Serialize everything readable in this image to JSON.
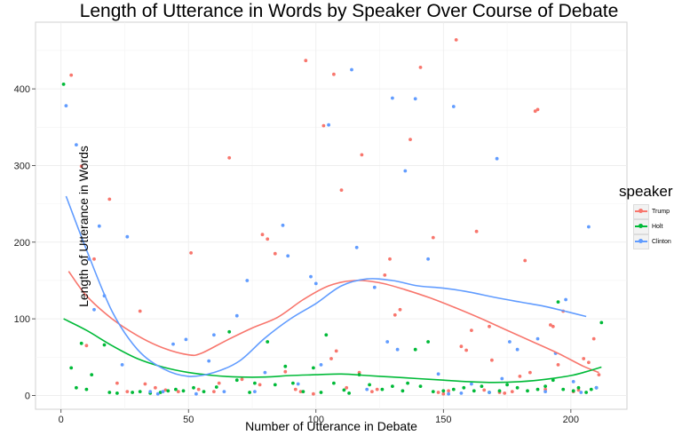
{
  "chart_data": {
    "type": "scatter",
    "title": "Length of Utterance in Words by Speaker Over Course of Debate",
    "xlabel": "Number of Utterance in Debate",
    "ylabel": "Length of Utterance in Words",
    "xlim": [
      -10,
      222
    ],
    "ylim": [
      -18,
      487
    ],
    "x_ticks": [
      0,
      50,
      100,
      150,
      200
    ],
    "y_ticks": [
      0,
      100,
      200,
      300,
      400
    ],
    "grid": true,
    "legend_title": "speaker",
    "legend_position": "right",
    "series": [
      {
        "name": "Trump",
        "color": "#F8766D",
        "points": [
          [
            4,
            418
          ],
          [
            8,
            299
          ],
          [
            10,
            65
          ],
          [
            13,
            178
          ],
          [
            19,
            256
          ],
          [
            22,
            16
          ],
          [
            26,
            5
          ],
          [
            31,
            110
          ],
          [
            33,
            15
          ],
          [
            37,
            10
          ],
          [
            41,
            7
          ],
          [
            46,
            5
          ],
          [
            51,
            186
          ],
          [
            54,
            8
          ],
          [
            60,
            5
          ],
          [
            62,
            16
          ],
          [
            66,
            310
          ],
          [
            71,
            21
          ],
          [
            78,
            14
          ],
          [
            79,
            210
          ],
          [
            81,
            204
          ],
          [
            84,
            185
          ],
          [
            88,
            31
          ],
          [
            92,
            8
          ],
          [
            94,
            5
          ],
          [
            96,
            437
          ],
          [
            99,
            2
          ],
          [
            103,
            352
          ],
          [
            106,
            48
          ],
          [
            107,
            419
          ],
          [
            108,
            58
          ],
          [
            110,
            268
          ],
          [
            112,
            10
          ],
          [
            117,
            30
          ],
          [
            118,
            314
          ],
          [
            122,
            5
          ],
          [
            124,
            8
          ],
          [
            127,
            157
          ],
          [
            129,
            178
          ],
          [
            131,
            105
          ],
          [
            133,
            112
          ],
          [
            137,
            334
          ],
          [
            141,
            428
          ],
          [
            146,
            206
          ],
          [
            148,
            4
          ],
          [
            150,
            2
          ],
          [
            152,
            6
          ],
          [
            155,
            464
          ],
          [
            157,
            64
          ],
          [
            159,
            59
          ],
          [
            161,
            85
          ],
          [
            163,
            214
          ],
          [
            166,
            7
          ],
          [
            168,
            90
          ],
          [
            169,
            46
          ],
          [
            172,
            4
          ],
          [
            174,
            3
          ],
          [
            177,
            5
          ],
          [
            180,
            25
          ],
          [
            182,
            176
          ],
          [
            184,
            30
          ],
          [
            186,
            371
          ],
          [
            187,
            373
          ],
          [
            190,
            8
          ],
          [
            192,
            92
          ],
          [
            193,
            90
          ],
          [
            195,
            40
          ],
          [
            197,
            110
          ],
          [
            201,
            5
          ],
          [
            203,
            7
          ],
          [
            205,
            48
          ],
          [
            207,
            43
          ],
          [
            209,
            74
          ],
          [
            211,
            27
          ]
        ],
        "smooth": [
          [
            3,
            162
          ],
          [
            10,
            130
          ],
          [
            20,
            100
          ],
          [
            30,
            78
          ],
          [
            40,
            62
          ],
          [
            50,
            53
          ],
          [
            55,
            55
          ],
          [
            65,
            72
          ],
          [
            75,
            88
          ],
          [
            85,
            102
          ],
          [
            95,
            125
          ],
          [
            105,
            143
          ],
          [
            115,
            150
          ],
          [
            125,
            147
          ],
          [
            135,
            138
          ],
          [
            145,
            127
          ],
          [
            155,
            114
          ],
          [
            165,
            100
          ],
          [
            175,
            85
          ],
          [
            185,
            70
          ],
          [
            195,
            55
          ],
          [
            205,
            38
          ],
          [
            211,
            30
          ]
        ]
      },
      {
        "name": "Holt",
        "color": "#00BA38",
        "points": [
          [
            1,
            406
          ],
          [
            4,
            36
          ],
          [
            6,
            10
          ],
          [
            8,
            68
          ],
          [
            10,
            8
          ],
          [
            12,
            27
          ],
          [
            17,
            66
          ],
          [
            19,
            4
          ],
          [
            22,
            3
          ],
          [
            28,
            4
          ],
          [
            31,
            5
          ],
          [
            35,
            3
          ],
          [
            39,
            4
          ],
          [
            42,
            6
          ],
          [
            45,
            8
          ],
          [
            48,
            6
          ],
          [
            52,
            10
          ],
          [
            56,
            5
          ],
          [
            61,
            11
          ],
          [
            66,
            83
          ],
          [
            69,
            20
          ],
          [
            74,
            4
          ],
          [
            76,
            16
          ],
          [
            81,
            70
          ],
          [
            84,
            14
          ],
          [
            88,
            38
          ],
          [
            91,
            16
          ],
          [
            95,
            5
          ],
          [
            99,
            36
          ],
          [
            102,
            4
          ],
          [
            104,
            79
          ],
          [
            107,
            16
          ],
          [
            111,
            7
          ],
          [
            113,
            3
          ],
          [
            117,
            27
          ],
          [
            121,
            14
          ],
          [
            126,
            8
          ],
          [
            130,
            12
          ],
          [
            134,
            6
          ],
          [
            136,
            16
          ],
          [
            139,
            60
          ],
          [
            141,
            12
          ],
          [
            144,
            70
          ],
          [
            146,
            5
          ],
          [
            150,
            6
          ],
          [
            154,
            8
          ],
          [
            158,
            10
          ],
          [
            162,
            6
          ],
          [
            165,
            12
          ],
          [
            168,
            4
          ],
          [
            172,
            6
          ],
          [
            175,
            14
          ],
          [
            179,
            10
          ],
          [
            183,
            6
          ],
          [
            187,
            8
          ],
          [
            190,
            12
          ],
          [
            193,
            20
          ],
          [
            195,
            122
          ],
          [
            197,
            8
          ],
          [
            201,
            6
          ],
          [
            203,
            10
          ],
          [
            206,
            4
          ],
          [
            208,
            8
          ],
          [
            210,
            10
          ],
          [
            212,
            95
          ]
        ],
        "smooth": [
          [
            1,
            100
          ],
          [
            10,
            85
          ],
          [
            20,
            65
          ],
          [
            30,
            48
          ],
          [
            40,
            37
          ],
          [
            50,
            30
          ],
          [
            60,
            26
          ],
          [
            70,
            24
          ],
          [
            80,
            24
          ],
          [
            90,
            26
          ],
          [
            100,
            27
          ],
          [
            110,
            28
          ],
          [
            120,
            26
          ],
          [
            130,
            24
          ],
          [
            140,
            22
          ],
          [
            150,
            20
          ],
          [
            160,
            18
          ],
          [
            170,
            17
          ],
          [
            180,
            18
          ],
          [
            190,
            21
          ],
          [
            200,
            26
          ],
          [
            206,
            31
          ],
          [
            212,
            37
          ]
        ]
      },
      {
        "name": "Clinton",
        "color": "#619CFF",
        "points": [
          [
            2,
            378
          ],
          [
            6,
            327
          ],
          [
            11,
            178
          ],
          [
            13,
            112
          ],
          [
            15,
            221
          ],
          [
            17,
            130
          ],
          [
            24,
            40
          ],
          [
            26,
            207
          ],
          [
            35,
            5
          ],
          [
            38,
            2
          ],
          [
            40,
            5
          ],
          [
            44,
            67
          ],
          [
            49,
            73
          ],
          [
            53,
            2
          ],
          [
            58,
            45
          ],
          [
            60,
            79
          ],
          [
            64,
            5
          ],
          [
            69,
            104
          ],
          [
            73,
            150
          ],
          [
            76,
            5
          ],
          [
            80,
            30
          ],
          [
            87,
            222
          ],
          [
            89,
            182
          ],
          [
            93,
            15
          ],
          [
            98,
            155
          ],
          [
            100,
            146
          ],
          [
            102,
            40
          ],
          [
            105,
            353
          ],
          [
            114,
            425
          ],
          [
            116,
            193
          ],
          [
            120,
            8
          ],
          [
            123,
            141
          ],
          [
            128,
            70
          ],
          [
            130,
            388
          ],
          [
            132,
            60
          ],
          [
            135,
            293
          ],
          [
            139,
            387
          ],
          [
            144,
            178
          ],
          [
            148,
            28
          ],
          [
            152,
            2
          ],
          [
            154,
            377
          ],
          [
            157,
            3
          ],
          [
            161,
            15
          ],
          [
            168,
            4
          ],
          [
            171,
            309
          ],
          [
            173,
            22
          ],
          [
            176,
            70
          ],
          [
            179,
            60
          ],
          [
            187,
            74
          ],
          [
            190,
            5
          ],
          [
            194,
            55
          ],
          [
            198,
            125
          ],
          [
            201,
            18
          ],
          [
            204,
            4
          ],
          [
            207,
            220
          ],
          [
            210,
            10
          ]
        ],
        "smooth": [
          [
            2,
            260
          ],
          [
            10,
            190
          ],
          [
            20,
            110
          ],
          [
            30,
            60
          ],
          [
            40,
            35
          ],
          [
            50,
            25
          ],
          [
            60,
            30
          ],
          [
            70,
            45
          ],
          [
            80,
            75
          ],
          [
            90,
            100
          ],
          [
            100,
            120
          ],
          [
            110,
            143
          ],
          [
            120,
            152
          ],
          [
            130,
            150
          ],
          [
            140,
            143
          ],
          [
            150,
            140
          ],
          [
            160,
            135
          ],
          [
            170,
            128
          ],
          [
            180,
            122
          ],
          [
            190,
            116
          ],
          [
            200,
            108
          ],
          [
            206,
            103
          ]
        ]
      }
    ]
  }
}
